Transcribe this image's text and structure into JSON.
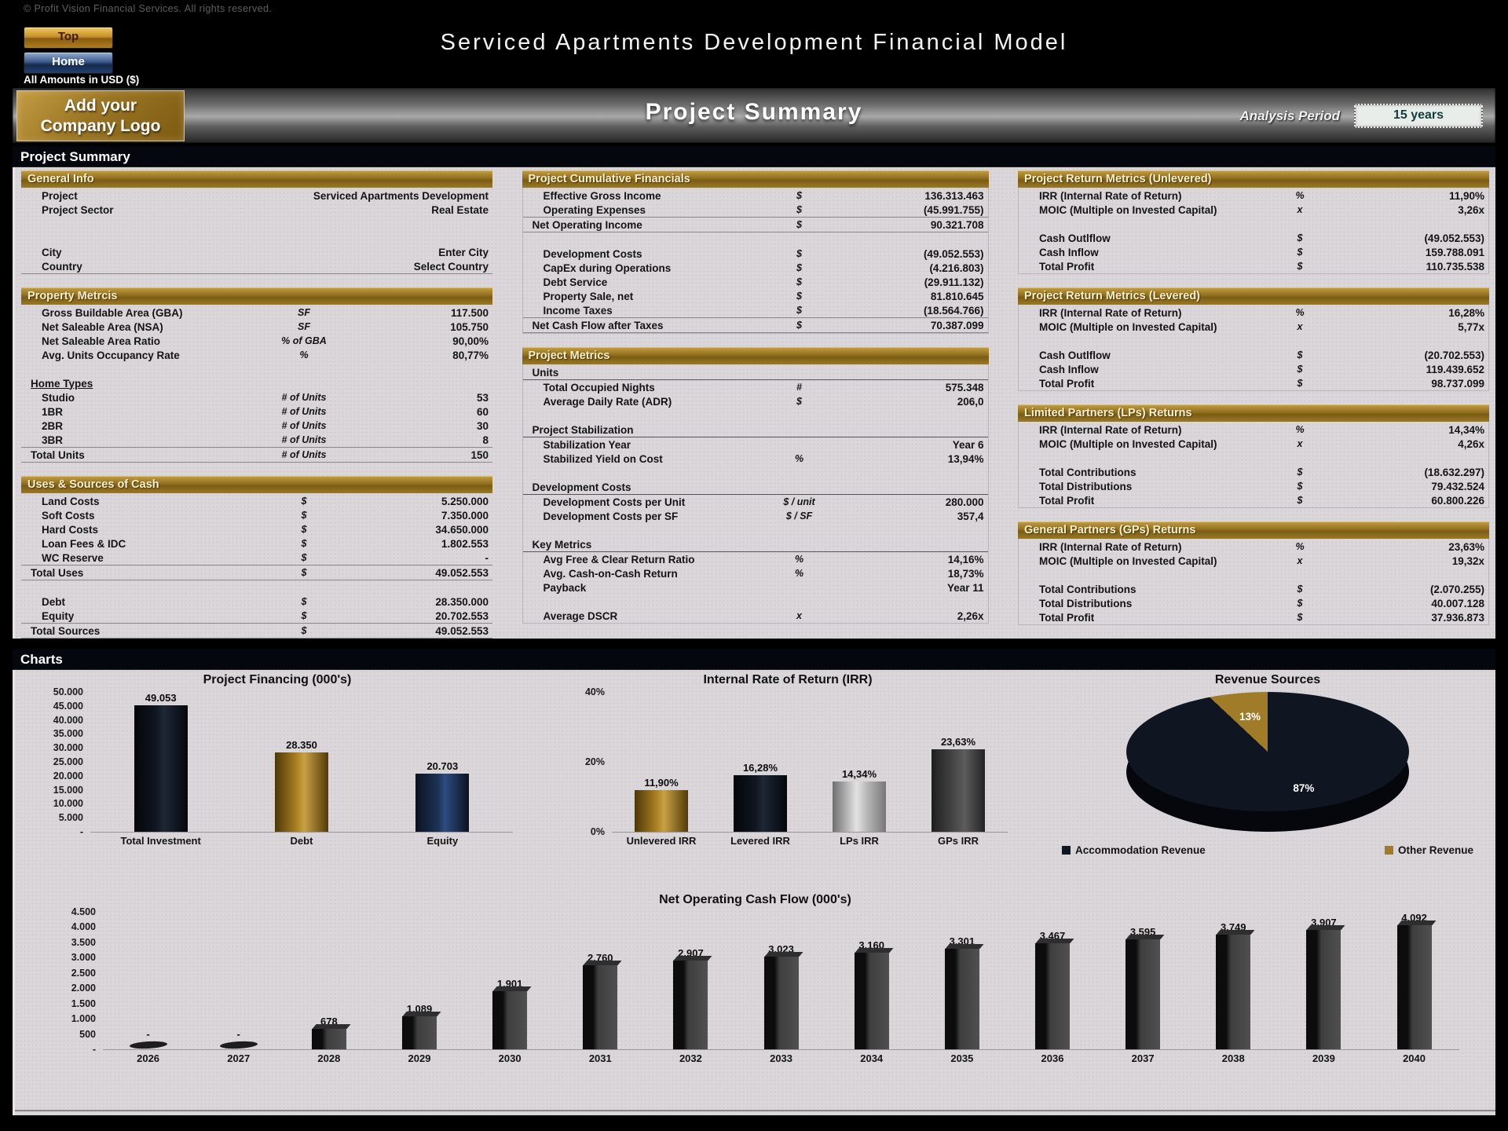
{
  "header": {
    "copyright": "© Profit Vision Financial Services. All rights reserved.",
    "nav": {
      "top_label": "Top",
      "home_label": "Home"
    },
    "app_title": "Serviced Apartments Development Financial Model",
    "amounts_note": "All Amounts in  USD ($)",
    "logo_line1": "Add your",
    "logo_line2": "Company Logo",
    "page_title": "Project Summary",
    "analysis_period_label": "Analysis Period",
    "analysis_period_value": "15 years"
  },
  "section_label": "Project Summary",
  "charts_label": "Charts",
  "colors": {
    "gold_accent": "#9a7a26",
    "panel_bg": "#dad6da",
    "pie_navy": "#101522",
    "pie_gold": "#a07c28"
  },
  "panels": {
    "general_info": {
      "title": "General Info",
      "boxed": false,
      "rows": [
        {
          "label": "Project",
          "unit": "",
          "value": "Serviced Apartments Development"
        },
        {
          "label": "Project Sector",
          "unit": "",
          "value": "Real Estate"
        },
        {
          "cls": "gap2"
        },
        {
          "label": "City",
          "unit": "",
          "value": "Enter City",
          "input": true,
          "name": "city-input"
        },
        {
          "label": "Country",
          "unit": "",
          "value": "Select Country",
          "input": true,
          "name": "country-select",
          "cls": "line"
        }
      ]
    },
    "property_metrics": {
      "title": "Property Metrcis",
      "boxed": false,
      "rows": [
        {
          "label": "Gross Buildable Area (GBA)",
          "unit": "SF",
          "value": "117.500"
        },
        {
          "label": "Net Saleable Area (NSA)",
          "unit": "SF",
          "value": "105.750"
        },
        {
          "label": "Net Saleable Area Ratio",
          "unit": "% of GBA",
          "value": "90,00%"
        },
        {
          "label": "Avg. Units Occupancy Rate",
          "unit": "%",
          "value": "80,77%"
        },
        {
          "cls": "gap"
        },
        {
          "label": "Home Types",
          "cls": "subu"
        },
        {
          "label": "Studio",
          "unit": "# of Units",
          "value": "53"
        },
        {
          "label": "1BR",
          "unit": "# of Units",
          "value": "60"
        },
        {
          "label": "2BR",
          "unit": "# of Units",
          "value": "30"
        },
        {
          "label": "3BR",
          "unit": "# of Units",
          "value": "8"
        },
        {
          "label": "Total Units",
          "unit": "# of Units",
          "value": "150",
          "cls": "total"
        }
      ]
    },
    "uses_sources": {
      "title": "Uses & Sources of Cash",
      "boxed": false,
      "rows": [
        {
          "label": "Land Costs",
          "unit": "$",
          "value": "5.250.000"
        },
        {
          "label": "Soft Costs",
          "unit": "$",
          "value": "7.350.000"
        },
        {
          "label": "Hard Costs",
          "unit": "$",
          "value": "34.650.000"
        },
        {
          "label": "Loan Fees & IDC",
          "unit": "$",
          "value": "1.802.553"
        },
        {
          "label": "WC Reserve",
          "unit": "$",
          "value": "-"
        },
        {
          "label": "Total Uses",
          "unit": "$",
          "value": "49.052.553",
          "cls": "total"
        },
        {
          "cls": "gap"
        },
        {
          "label": "Debt",
          "unit": "$",
          "value": "28.350.000"
        },
        {
          "label": "Equity",
          "unit": "$",
          "value": "20.702.553"
        },
        {
          "label": "Total Sources",
          "unit": "$",
          "value": "49.052.553",
          "cls": "total"
        }
      ]
    },
    "cumulative_financials": {
      "title": "Project Cumulative Financials",
      "boxed": true,
      "rows": [
        {
          "label": "Effective Gross Income",
          "unit": "$",
          "value": "136.313.463"
        },
        {
          "label": "Operating Expenses",
          "unit": "$",
          "value": "(45.991.755)"
        },
        {
          "label": "Net Operating Income",
          "unit": "$",
          "value": "90.321.708",
          "cls": "total"
        },
        {
          "cls": "gap"
        },
        {
          "label": "Development Costs",
          "unit": "$",
          "value": "(49.052.553)"
        },
        {
          "label": "CapEx during Operations",
          "unit": "$",
          "value": "(4.216.803)"
        },
        {
          "label": "Debt Service",
          "unit": "$",
          "value": "(29.911.132)"
        },
        {
          "label": "Property Sale, net",
          "unit": "$",
          "value": "81.810.645"
        },
        {
          "label": "Income Taxes",
          "unit": "$",
          "value": "(18.564.766)"
        },
        {
          "label": "Net Cash Flow after Taxes",
          "unit": "$",
          "value": "70.387.099",
          "cls": "total"
        }
      ]
    },
    "project_metrics": {
      "title": "Project Metrics",
      "boxed": true,
      "rows": [
        {
          "label": "Units",
          "cls": "sub"
        },
        {
          "label": "Total Occupied Nights",
          "unit": "#",
          "value": "575.348"
        },
        {
          "label": "Average Daily Rate (ADR)",
          "unit": "$",
          "value": "206,0"
        },
        {
          "cls": "gap"
        },
        {
          "label": "Project Stabilization",
          "cls": "sub"
        },
        {
          "label": "Stabilization Year",
          "unit": "",
          "value": "Year 6"
        },
        {
          "label": "Stabilized Yield on Cost",
          "unit": "%",
          "value": "13,94%"
        },
        {
          "cls": "gap"
        },
        {
          "label": "Development Costs",
          "cls": "sub"
        },
        {
          "label": "Development Costs per Unit",
          "unit": "$ / unit",
          "value": "280.000"
        },
        {
          "label": "Development Costs per SF",
          "unit": "$ / SF",
          "value": "357,4"
        },
        {
          "cls": "gap"
        },
        {
          "label": "Key Metrics",
          "cls": "sub"
        },
        {
          "label": "Avg Free & Clear Return Ratio",
          "unit": "%",
          "value": "14,16%"
        },
        {
          "label": "Avg. Cash-on-Cash Return",
          "unit": "%",
          "value": "18,73%"
        },
        {
          "label": "Payback",
          "unit": "",
          "value": "Year 11"
        },
        {
          "cls": "gap"
        },
        {
          "label": "Average DSCR",
          "unit": "x",
          "value": "2,26x"
        }
      ]
    },
    "unlevered": {
      "title": "Project Return Metrics (Unlevered)",
      "boxed": true,
      "rows": [
        {
          "label": "IRR (Internal Rate of Return)",
          "unit": "%",
          "value": "11,90%"
        },
        {
          "label": "MOIC (Multiple on Invested Capital)",
          "unit": "x",
          "value": "3,26x"
        },
        {
          "cls": "gap"
        },
        {
          "label": "Cash Outlflow",
          "unit": "$",
          "value": "(49.052.553)"
        },
        {
          "label": "Cash Inflow",
          "unit": "$",
          "value": "159.788.091"
        },
        {
          "label": "Total Profit",
          "unit": "$",
          "value": "110.735.538"
        }
      ]
    },
    "levered": {
      "title": "Project Return Metrics (Levered)",
      "boxed": true,
      "rows": [
        {
          "label": "IRR (Internal Rate of Return)",
          "unit": "%",
          "value": "16,28%"
        },
        {
          "label": "MOIC (Multiple on Invested Capital)",
          "unit": "x",
          "value": "5,77x"
        },
        {
          "cls": "gap"
        },
        {
          "label": "Cash Outlflow",
          "unit": "$",
          "value": "(20.702.553)"
        },
        {
          "label": "Cash Inflow",
          "unit": "$",
          "value": "119.439.652"
        },
        {
          "label": "Total Profit",
          "unit": "$",
          "value": "98.737.099"
        }
      ]
    },
    "lps": {
      "title": "Limited Partners (LPs) Returns",
      "boxed": true,
      "rows": [
        {
          "label": "IRR (Internal Rate of Return)",
          "unit": "%",
          "value": "14,34%"
        },
        {
          "label": "MOIC (Multiple on Invested Capital)",
          "unit": "x",
          "value": "4,26x"
        },
        {
          "cls": "gap"
        },
        {
          "label": "Total Contributions",
          "unit": "$",
          "value": "(18.632.297)"
        },
        {
          "label": "Total Distributions",
          "unit": "$",
          "value": "79.432.524"
        },
        {
          "label": "Total Profit",
          "unit": "$",
          "value": "60.800.226"
        }
      ]
    },
    "gps": {
      "title": "General Partners (GPs) Returns",
      "boxed": true,
      "rows": [
        {
          "label": "IRR (Internal Rate of Return)",
          "unit": "%",
          "value": "23,63%"
        },
        {
          "label": "MOIC (Multiple on Invested Capital)",
          "unit": "x",
          "value": "19,32x"
        },
        {
          "cls": "gap"
        },
        {
          "label": "Total Contributions",
          "unit": "$",
          "value": "(2.070.255)"
        },
        {
          "label": "Total Distributions",
          "unit": "$",
          "value": "40.007.128"
        },
        {
          "label": "Total Profit",
          "unit": "$",
          "value": "37.936.873"
        }
      ]
    }
  },
  "chart_data": [
    {
      "id": "financing",
      "type": "bar",
      "title": "Project Financing (000's)",
      "categories": [
        "Total Investment",
        "Debt",
        "Equity"
      ],
      "values": [
        49053,
        28350,
        20703
      ],
      "value_labels": [
        "49.053",
        "28.350",
        "20.703"
      ],
      "bar_styles": [
        "navy",
        "gold",
        "steel"
      ],
      "ylim": [
        0,
        50000
      ],
      "yticks": [
        "50.000",
        "45.000",
        "40.000",
        "35.000",
        "30.000",
        "25.000",
        "20.000",
        "15.000",
        "10.000",
        "5.000",
        "-"
      ],
      "legend_position": "none",
      "grid": false
    },
    {
      "id": "irr",
      "type": "bar",
      "title": "Internal Rate of Return (IRR)",
      "categories": [
        "Unlevered IRR",
        "Levered IRR",
        "LPs IRR",
        "GPs IRR"
      ],
      "values": [
        11.9,
        16.28,
        14.34,
        23.63
      ],
      "value_labels": [
        "11,90%",
        "16,28%",
        "14,34%",
        "23,63%"
      ],
      "bar_styles": [
        "gold",
        "navy",
        "silver",
        "charcoal"
      ],
      "ylim": [
        0,
        40
      ],
      "yticks": [
        "40%",
        "20%",
        "0%"
      ],
      "legend_position": "none",
      "grid": false
    },
    {
      "id": "revenue",
      "type": "pie",
      "title": "Revenue Sources",
      "slices": [
        {
          "label": "Accommodation Revenue",
          "value": 87,
          "pct_label": "87%",
          "color": "#101522"
        },
        {
          "label": "Other Revenue",
          "value": 13,
          "pct_label": "13%",
          "color": "#a07c28"
        }
      ],
      "legend_position": "bottom"
    },
    {
      "id": "nocf",
      "type": "bar",
      "title": "Net Operating Cash Flow (000's)",
      "categories": [
        "2026",
        "2027",
        "2028",
        "2029",
        "2030",
        "2031",
        "2032",
        "2033",
        "2034",
        "2035",
        "2036",
        "2037",
        "2038",
        "2039",
        "2040"
      ],
      "values": [
        0,
        0,
        678,
        1089,
        1901,
        2760,
        2907,
        3023,
        3160,
        3301,
        3467,
        3595,
        3749,
        3907,
        4092
      ],
      "value_labels": [
        "-",
        "-",
        "678",
        "1.089",
        "1.901",
        "2.760",
        "2.907",
        "3.023",
        "3.160",
        "3.301",
        "3.467",
        "3.595",
        "3.749",
        "3.907",
        "4.092"
      ],
      "bar_styles": [
        "gray3d",
        "gray3d",
        "gray3d",
        "gray3d",
        "gray3d",
        "gray3d",
        "gray3d",
        "gray3d",
        "gray3d",
        "gray3d",
        "gray3d",
        "gray3d",
        "gray3d",
        "gray3d",
        "gray3d"
      ],
      "ylim": [
        0,
        4500
      ],
      "yticks": [
        "4.500",
        "4.000",
        "3.500",
        "3.000",
        "2.500",
        "2.000",
        "1.500",
        "1.000",
        "500",
        "-"
      ],
      "legend_position": "none",
      "grid": false
    }
  ]
}
